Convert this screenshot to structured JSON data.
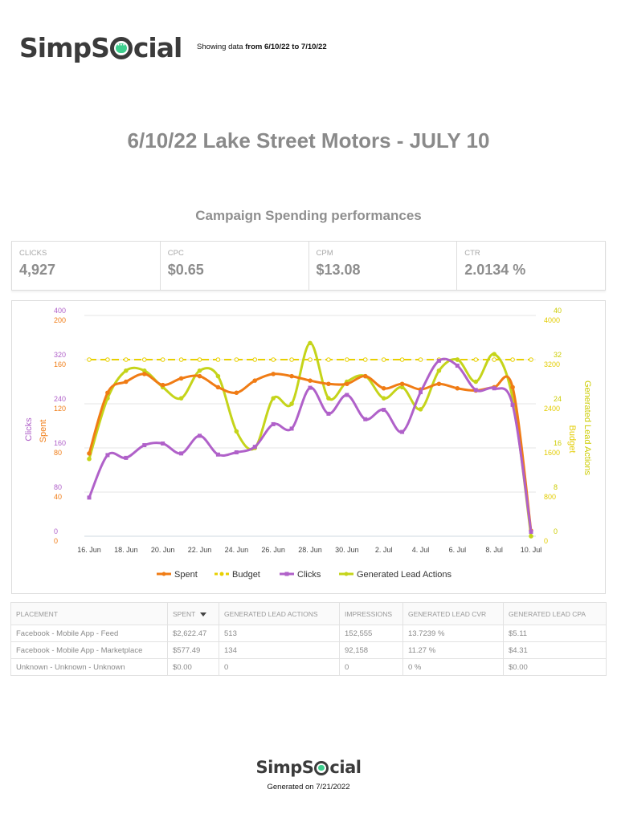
{
  "header": {
    "logo_pre": "SimpS",
    "logo_post": "cial",
    "showing_prefix": "Showing data ",
    "showing_range": "from 6/10/22 to 7/10/22"
  },
  "title": "6/10/22 Lake Street Motors - JULY 10",
  "subtitle": "Campaign Spending performances",
  "kpis": [
    {
      "label": "CLICKS",
      "value": "4,927"
    },
    {
      "label": "CPC",
      "value": "$0.65"
    },
    {
      "label": "CPM",
      "value": "$13.08"
    },
    {
      "label": "CTR",
      "value": "2.0134 %"
    }
  ],
  "chart_data": {
    "type": "line",
    "categories": [
      "16. Jun",
      "17. Jun",
      "18. Jun",
      "19. Jun",
      "20. Jun",
      "21. Jun",
      "22. Jun",
      "23. Jun",
      "24. Jun",
      "25. Jun",
      "26. Jun",
      "27. Jun",
      "28. Jun",
      "29. Jun",
      "30. Jun",
      "1. Jul",
      "2. Jul",
      "3. Jul",
      "4. Jul",
      "5. Jul",
      "6. Jul",
      "7. Jul",
      "8. Jul",
      "9. Jul",
      "10. Jul"
    ],
    "x_tick_labels": [
      "16. Jun",
      "18. Jun",
      "20. Jun",
      "22. Jun",
      "24. Jun",
      "26. Jun",
      "28. Jun",
      "30. Jun",
      "2. Jul",
      "4. Jul",
      "6. Jul",
      "8. Jul",
      "10. Jul"
    ],
    "axes": {
      "clicks": {
        "label": "Clicks",
        "ticks": [
          "400",
          "320",
          "240",
          "160",
          "80",
          "0"
        ],
        "range": [
          0,
          400
        ],
        "color": "#b061c9"
      },
      "spent": {
        "label": "Spent",
        "ticks": [
          "200",
          "160",
          "120",
          "80",
          "40",
          "0"
        ],
        "range": [
          0,
          200
        ],
        "color": "#f07c15"
      },
      "actions": {
        "label": "Generated Lead Actions",
        "ticks": [
          "40",
          "32",
          "24",
          "16",
          "8",
          "0"
        ],
        "range": [
          0,
          40
        ],
        "color": "#cccc00"
      },
      "budget": {
        "label": "Budget",
        "ticks": [
          "4000",
          "3200",
          "2400",
          "1600",
          "800",
          "0"
        ],
        "range": [
          0,
          4000
        ],
        "color": "#e3cc00"
      }
    },
    "series": [
      {
        "name": "Spent",
        "axis": "spent",
        "color": "#f07c15",
        "values": [
          75,
          130,
          140,
          147,
          137,
          143,
          145,
          135,
          130,
          141,
          147,
          145,
          141,
          138,
          138,
          145,
          134,
          138,
          133,
          138,
          134,
          132,
          135,
          135,
          5
        ]
      },
      {
        "name": "Budget",
        "axis": "budget",
        "color": "#e8d000",
        "values": [
          3200,
          3200,
          3200,
          3200,
          3200,
          3200,
          3200,
          3200,
          3200,
          3200,
          3200,
          3200,
          3200,
          3200,
          3200,
          3200,
          3200,
          3200,
          3200,
          3200,
          3200,
          3200,
          3200,
          3200,
          3200
        ]
      },
      {
        "name": "Clicks",
        "axis": "clicks",
        "color": "#b061c9",
        "values": [
          70,
          147,
          142,
          165,
          168,
          150,
          182,
          148,
          152,
          162,
          203,
          195,
          269,
          222,
          256,
          212,
          229,
          189,
          261,
          318,
          309,
          265,
          268,
          238,
          8
        ]
      },
      {
        "name": "Generated Lead Actions",
        "axis": "actions",
        "color": "#c5d41a",
        "values": [
          14,
          25,
          30,
          30,
          27,
          25,
          30,
          29,
          19,
          16,
          25,
          24,
          35,
          25,
          28,
          29,
          25,
          27,
          23,
          30,
          32,
          28,
          33,
          25,
          0
        ]
      }
    ]
  },
  "table": {
    "headers": [
      "PLACEMENT",
      "SPENT",
      "GENERATED LEAD ACTIONS",
      "IMPRESSIONS",
      "GENERATED LEAD CVR",
      "GENERATED LEAD CPA"
    ],
    "rows": [
      [
        "Facebook - Mobile App - Feed",
        "$2,622.47",
        "513",
        "152,555",
        "13.7239 %",
        "$5.11"
      ],
      [
        "Facebook - Mobile App - Marketplace",
        "$577.49",
        "134",
        "92,158",
        "11.27 %",
        "$4.31"
      ],
      [
        "Unknown - Unknown - Unknown",
        "$0.00",
        "0",
        "0",
        "0 %",
        "$0.00"
      ]
    ]
  },
  "footer": {
    "logo_pre": "SimpS",
    "logo_post": "cial",
    "generated_prefix": "Generated on ",
    "generated_date": "7/21/2022"
  }
}
